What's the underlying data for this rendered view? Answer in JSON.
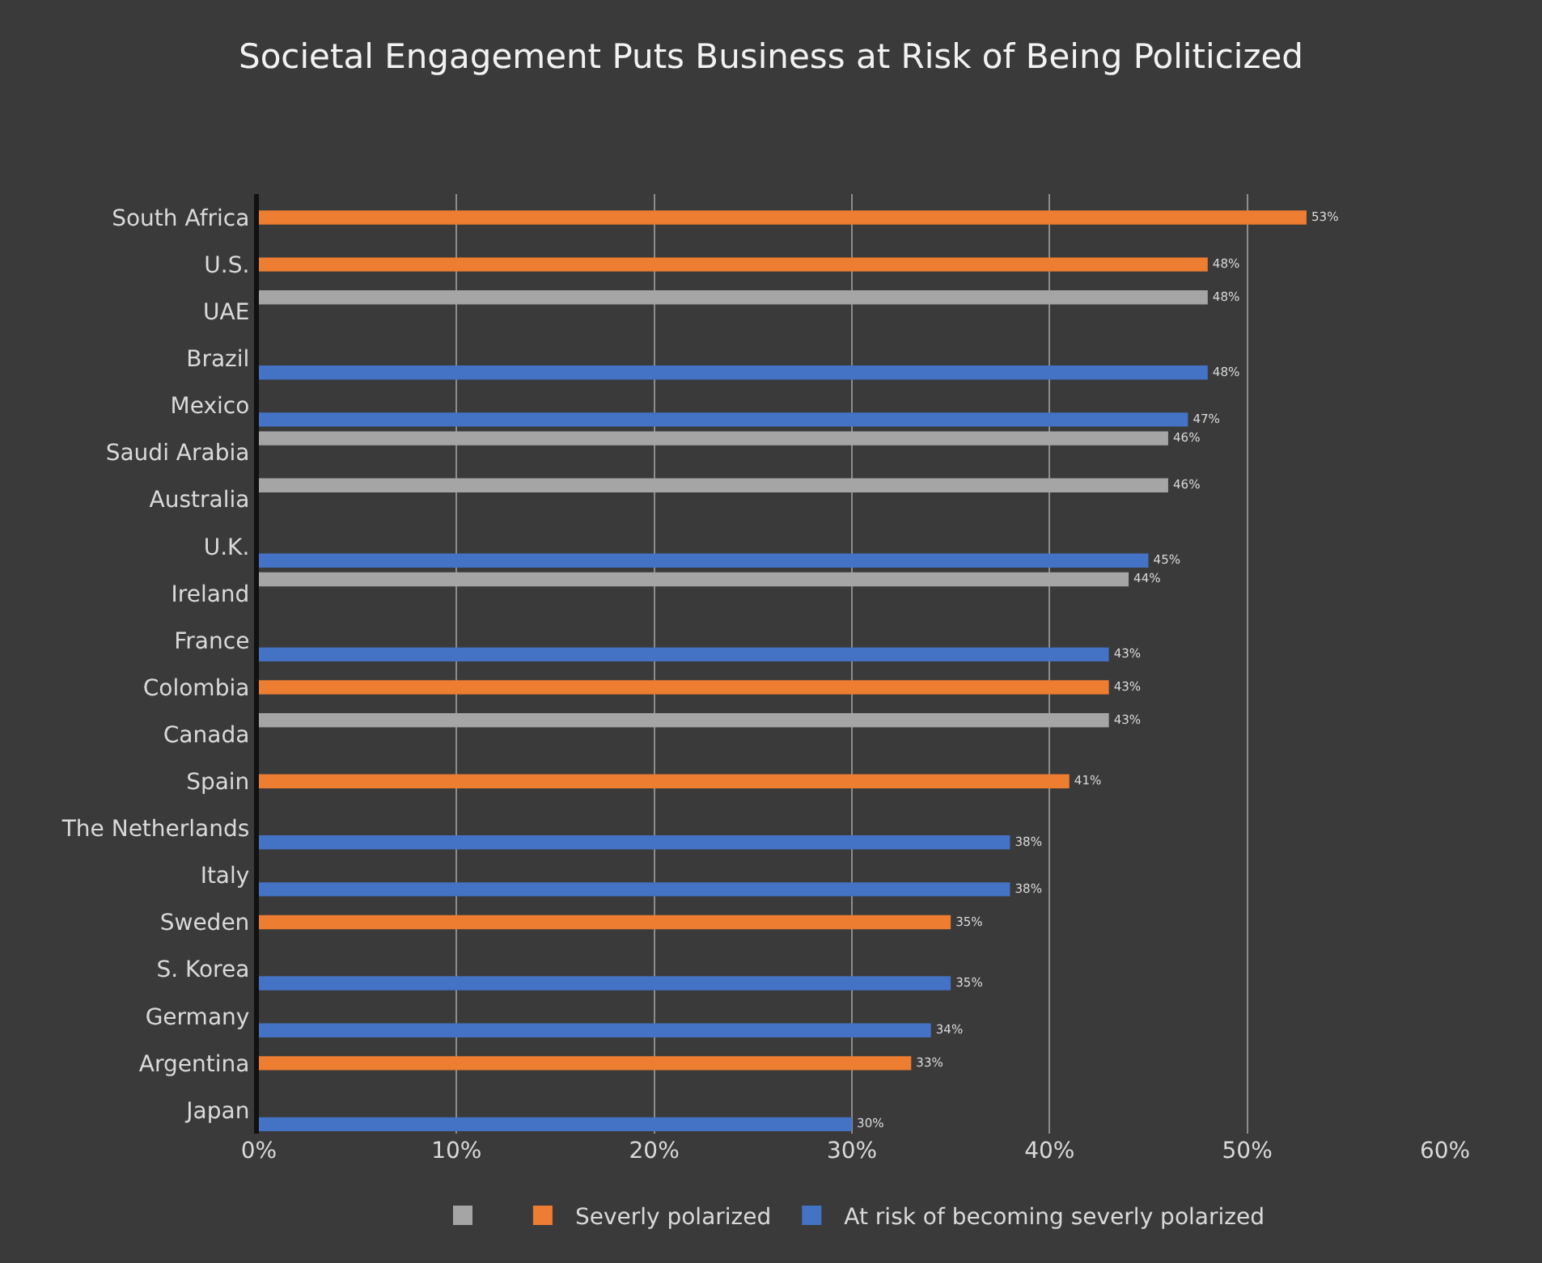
{
  "chart_data": {
    "type": "bar",
    "orientation": "horizontal",
    "title": "Societal Engagement Puts Business at Risk of Being Politicized",
    "categories": [
      "South Africa",
      "U.S.",
      "UAE",
      "Brazil",
      "Mexico",
      "Saudi Arabia",
      "Australia",
      "U.K.",
      "Ireland",
      "France",
      "Colombia",
      "Canada",
      "Spain",
      "The Netherlands",
      "Italy",
      "Sweden",
      "S. Korea",
      "Germany",
      "Argentina",
      "Japan"
    ],
    "series": [
      {
        "color": "#a5a5a5",
        "values": [
          null,
          null,
          48,
          null,
          null,
          46,
          46,
          null,
          44,
          null,
          null,
          43,
          null,
          null,
          null,
          null,
          null,
          null,
          null,
          null
        ],
        "value_labels": [
          null,
          null,
          "48%",
          null,
          null,
          "46%",
          "46%",
          null,
          "44%",
          null,
          null,
          "43%",
          null,
          null,
          null,
          null,
          null,
          null,
          null,
          null
        ]
      },
      {
        "name": "Severly polarized",
        "color": "#ed7d31",
        "values": [
          53,
          48,
          null,
          null,
          null,
          null,
          null,
          null,
          null,
          null,
          43,
          null,
          41,
          null,
          null,
          35,
          null,
          null,
          33,
          null
        ],
        "value_labels": [
          "53%",
          "48%",
          null,
          null,
          null,
          null,
          null,
          null,
          null,
          null,
          "43%",
          null,
          "41%",
          null,
          null,
          "35%",
          null,
          null,
          "33%",
          null
        ]
      },
      {
        "name": "At risk of becoming severly polarized",
        "color": "#4472c4",
        "values": [
          null,
          null,
          null,
          48,
          47,
          null,
          null,
          45,
          null,
          43,
          null,
          null,
          null,
          38,
          38,
          null,
          35,
          34,
          null,
          30
        ],
        "value_labels": [
          null,
          null,
          null,
          "48%",
          "47%",
          null,
          null,
          "45%",
          null,
          "43%",
          null,
          null,
          null,
          "38%",
          "38%",
          null,
          "35%",
          "34%",
          null,
          "30%"
        ]
      }
    ],
    "xlim": [
      0,
      60
    ],
    "xticks": [
      {
        "value": 0,
        "label": "0%"
      },
      {
        "value": 10,
        "label": "10%"
      },
      {
        "value": 20,
        "label": "20%"
      },
      {
        "value": 30,
        "label": "30%"
      },
      {
        "value": 40,
        "label": "40%"
      },
      {
        "value": 50,
        "label": "50%"
      },
      {
        "value": 60,
        "label": "60%"
      }
    ],
    "grid": "x",
    "legend": "bottom"
  }
}
